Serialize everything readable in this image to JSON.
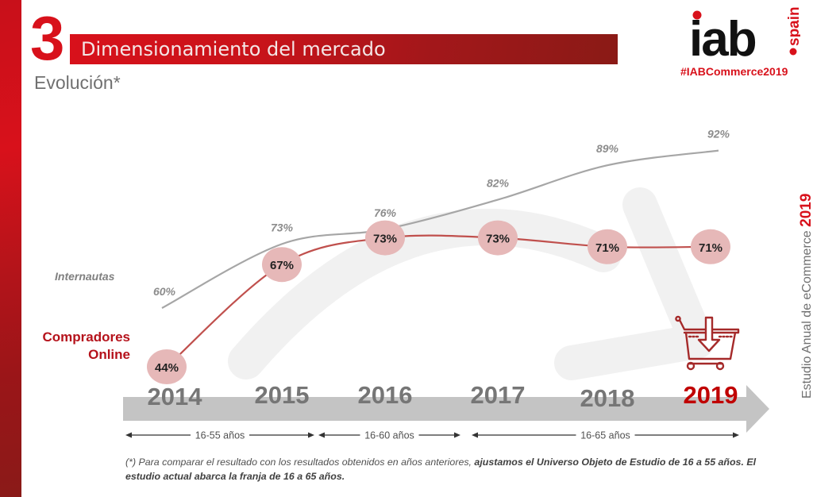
{
  "header": {
    "section_number": "3",
    "title": "Dimensionamiento del mercado",
    "subtitle": "Evolución*"
  },
  "brand": {
    "logo_text": "iab",
    "logo_sub": "spain",
    "hashtag": "#IABCommerce2019",
    "primary_color": "#d8111b"
  },
  "side_caption": {
    "text": "Estudio Anual de eCommerce ",
    "year": "2019"
  },
  "chart_data": {
    "type": "line",
    "title": "Evolución*",
    "xlabel": "",
    "ylabel": "",
    "x": [
      "2014",
      "2015",
      "2016",
      "2017",
      "2018",
      "2019"
    ],
    "highlight_category": "2019",
    "series": [
      {
        "name": "Internautas",
        "values": [
          60,
          73,
          76,
          82,
          89,
          92
        ],
        "labels": [
          "60%",
          "73%",
          "76%",
          "82%",
          "89%",
          "92%"
        ],
        "color": "#a6a6a6",
        "label_style": "italic-gray"
      },
      {
        "name": "Compradores Online",
        "values": [
          44,
          67,
          73,
          73,
          71,
          71
        ],
        "labels": [
          "44%",
          "67%",
          "73%",
          "73%",
          "71%",
          "71%"
        ],
        "color": "#c0504d",
        "marker_color": "#e6b8b8",
        "label_style": "bold-in-circle"
      }
    ],
    "age_ranges": [
      {
        "label": "16-55 años",
        "from": "2014",
        "to": "2015"
      },
      {
        "label": "16-60 años",
        "from": "2015",
        "to": "2016"
      },
      {
        "label": "16-65 años",
        "from": "2017",
        "to": "2019"
      }
    ],
    "grid": false,
    "legend": "left"
  },
  "legend": {
    "internautas": "Internautas",
    "compradores_line1": "Compradores",
    "compradores_line2": "Online"
  },
  "footnote": {
    "normal": "(*) Para comparar el resultado con los resultados obtenidos en años anteriores, ",
    "bold": "ajustamos el Universo Objeto de Estudio de 16 a 55 años. El estudio actual abarca la franja de 16 a 65 años."
  },
  "icons": {
    "cart": "shopping-basket-download-icon"
  }
}
